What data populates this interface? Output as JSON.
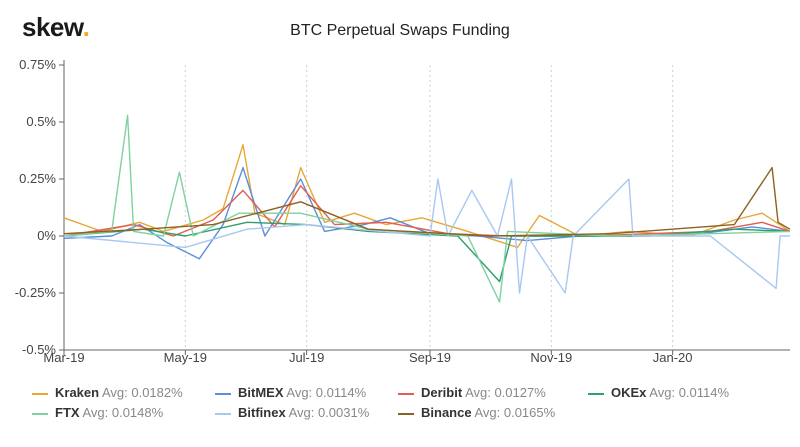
{
  "logo": {
    "text": "skew",
    "dot": "."
  },
  "chart_data": {
    "type": "line",
    "title": "BTC Perpetual Swaps Funding",
    "xlabel": "",
    "ylabel": "",
    "x_ticks": [
      "Mar-19",
      "May-19",
      "Jul-19",
      "Sep-19",
      "Nov-19",
      "Jan-20"
    ],
    "x_range": [
      "2019-03-01",
      "2020-02-29"
    ],
    "y_ticks": [
      "0.75%",
      "0.5%",
      "0.25%",
      "0%",
      "-0.25%",
      "-0.5%"
    ],
    "y_range": [
      -0.5,
      0.75
    ],
    "y_unit": "%",
    "grid": "vertical-dotted",
    "legend_position": "bottom",
    "series": [
      {
        "name": "Kraken",
        "avg_label": "Avg: 0.0182%",
        "color": "#e8a735",
        "points": [
          [
            "2019-03-01",
            0.08
          ],
          [
            "2019-03-20",
            0.02
          ],
          [
            "2019-04-08",
            0.06
          ],
          [
            "2019-04-20",
            0.02
          ],
          [
            "2019-05-10",
            0.07
          ],
          [
            "2019-05-20",
            0.12
          ],
          [
            "2019-05-30",
            0.4
          ],
          [
            "2019-06-05",
            0.1
          ],
          [
            "2019-06-20",
            0.05
          ],
          [
            "2019-06-28",
            0.3
          ],
          [
            "2019-07-10",
            0.06
          ],
          [
            "2019-07-25",
            0.1
          ],
          [
            "2019-08-10",
            0.05
          ],
          [
            "2019-08-28",
            0.08
          ],
          [
            "2019-09-20",
            0.02
          ],
          [
            "2019-10-15",
            -0.05
          ],
          [
            "2019-10-26",
            0.09
          ],
          [
            "2019-11-15",
            0.0
          ],
          [
            "2019-12-10",
            0.02
          ],
          [
            "2020-01-10",
            0.0
          ],
          [
            "2020-02-01",
            0.07
          ],
          [
            "2020-02-15",
            0.1
          ],
          [
            "2020-02-29",
            0.02
          ]
        ]
      },
      {
        "name": "BitMEX",
        "avg_label": "Avg: 0.0114%",
        "color": "#5b8fd9",
        "points": [
          [
            "2019-03-01",
            -0.01
          ],
          [
            "2019-03-25",
            0.0
          ],
          [
            "2019-04-08",
            0.05
          ],
          [
            "2019-04-22",
            -0.03
          ],
          [
            "2019-05-08",
            -0.1
          ],
          [
            "2019-05-20",
            0.05
          ],
          [
            "2019-05-30",
            0.3
          ],
          [
            "2019-06-10",
            0.0
          ],
          [
            "2019-06-28",
            0.25
          ],
          [
            "2019-07-10",
            0.02
          ],
          [
            "2019-07-30",
            0.05
          ],
          [
            "2019-08-12",
            0.08
          ],
          [
            "2019-09-01",
            0.01
          ],
          [
            "2019-09-25",
            0.0
          ],
          [
            "2019-10-20",
            -0.02
          ],
          [
            "2019-11-15",
            0.0
          ],
          [
            "2019-12-15",
            0.0
          ],
          [
            "2020-01-15",
            0.01
          ],
          [
            "2020-02-10",
            0.04
          ],
          [
            "2020-02-29",
            0.02
          ]
        ]
      },
      {
        "name": "Deribit",
        "avg_label": "Avg: 0.0127%",
        "color": "#e25d52",
        "points": [
          [
            "2019-03-01",
            0.0
          ],
          [
            "2019-04-05",
            0.05
          ],
          [
            "2019-04-25",
            0.0
          ],
          [
            "2019-05-15",
            0.07
          ],
          [
            "2019-05-30",
            0.2
          ],
          [
            "2019-06-15",
            0.04
          ],
          [
            "2019-06-28",
            0.22
          ],
          [
            "2019-07-15",
            0.05
          ],
          [
            "2019-08-10",
            0.06
          ],
          [
            "2019-09-10",
            0.01
          ],
          [
            "2019-10-10",
            0.0
          ],
          [
            "2019-11-20",
            0.0
          ],
          [
            "2019-12-20",
            0.01
          ],
          [
            "2020-01-20",
            0.02
          ],
          [
            "2020-02-15",
            0.06
          ],
          [
            "2020-02-29",
            0.02
          ]
        ]
      },
      {
        "name": "OKEx",
        "avg_label": "Avg: 0.0114%",
        "color": "#2e9e6b",
        "points": [
          [
            "2019-03-01",
            0.0
          ],
          [
            "2019-04-10",
            0.03
          ],
          [
            "2019-05-01",
            0.0
          ],
          [
            "2019-06-01",
            0.06
          ],
          [
            "2019-07-01",
            0.05
          ],
          [
            "2019-08-01",
            0.02
          ],
          [
            "2019-09-15",
            0.0
          ],
          [
            "2019-10-06",
            -0.2
          ],
          [
            "2019-10-12",
            0.0
          ],
          [
            "2019-11-20",
            0.0
          ],
          [
            "2019-12-20",
            0.0
          ],
          [
            "2020-02-01",
            0.03
          ],
          [
            "2020-02-29",
            0.02
          ]
        ]
      },
      {
        "name": "FTX",
        "avg_label": "Avg: 0.0148%",
        "color": "#7fd1a0",
        "points": [
          [
            "2019-03-01",
            0.0
          ],
          [
            "2019-03-25",
            0.02
          ],
          [
            "2019-04-02",
            0.53
          ],
          [
            "2019-04-05",
            0.02
          ],
          [
            "2019-04-20",
            0.0
          ],
          [
            "2019-04-28",
            0.28
          ],
          [
            "2019-05-05",
            0.0
          ],
          [
            "2019-05-28",
            0.1
          ],
          [
            "2019-06-28",
            0.1
          ],
          [
            "2019-08-01",
            0.03
          ],
          [
            "2019-09-20",
            0.0
          ],
          [
            "2019-10-06",
            -0.29
          ],
          [
            "2019-10-10",
            0.02
          ],
          [
            "2019-12-01",
            0.0
          ],
          [
            "2020-01-20",
            0.01
          ],
          [
            "2020-02-29",
            0.02
          ]
        ]
      },
      {
        "name": "Bitfinex",
        "avg_label": "Avg: 0.0031%",
        "color": "#a9c8f0",
        "points": [
          [
            "2019-03-01",
            0.0
          ],
          [
            "2019-05-01",
            -0.05
          ],
          [
            "2019-06-01",
            0.03
          ],
          [
            "2019-07-01",
            0.05
          ],
          [
            "2019-09-01",
            0.0
          ],
          [
            "2019-09-05",
            0.25
          ],
          [
            "2019-09-10",
            0.0
          ],
          [
            "2019-09-22",
            0.2
          ],
          [
            "2019-10-05",
            0.0
          ],
          [
            "2019-10-12",
            0.25
          ],
          [
            "2019-10-16",
            -0.25
          ],
          [
            "2019-10-20",
            0.0
          ],
          [
            "2019-11-08",
            -0.25
          ],
          [
            "2019-11-12",
            0.0
          ],
          [
            "2019-12-10",
            0.25
          ],
          [
            "2019-12-12",
            0.0
          ],
          [
            "2020-01-20",
            0.0
          ],
          [
            "2020-02-22",
            -0.23
          ],
          [
            "2020-02-24",
            0.0
          ],
          [
            "2020-02-29",
            0.0
          ]
        ]
      },
      {
        "name": "Binance",
        "avg_label": "Avg: 0.0165%",
        "color": "#8b6223",
        "points": [
          [
            "2019-03-01",
            0.01
          ],
          [
            "2019-04-10",
            0.03
          ],
          [
            "2019-05-15",
            0.05
          ],
          [
            "2019-06-28",
            0.15
          ],
          [
            "2019-08-01",
            0.03
          ],
          [
            "2019-10-01",
            0.0
          ],
          [
            "2019-12-01",
            0.01
          ],
          [
            "2020-02-01",
            0.05
          ],
          [
            "2020-02-20",
            0.3
          ],
          [
            "2020-02-23",
            0.06
          ],
          [
            "2020-02-29",
            0.03
          ]
        ]
      }
    ]
  }
}
